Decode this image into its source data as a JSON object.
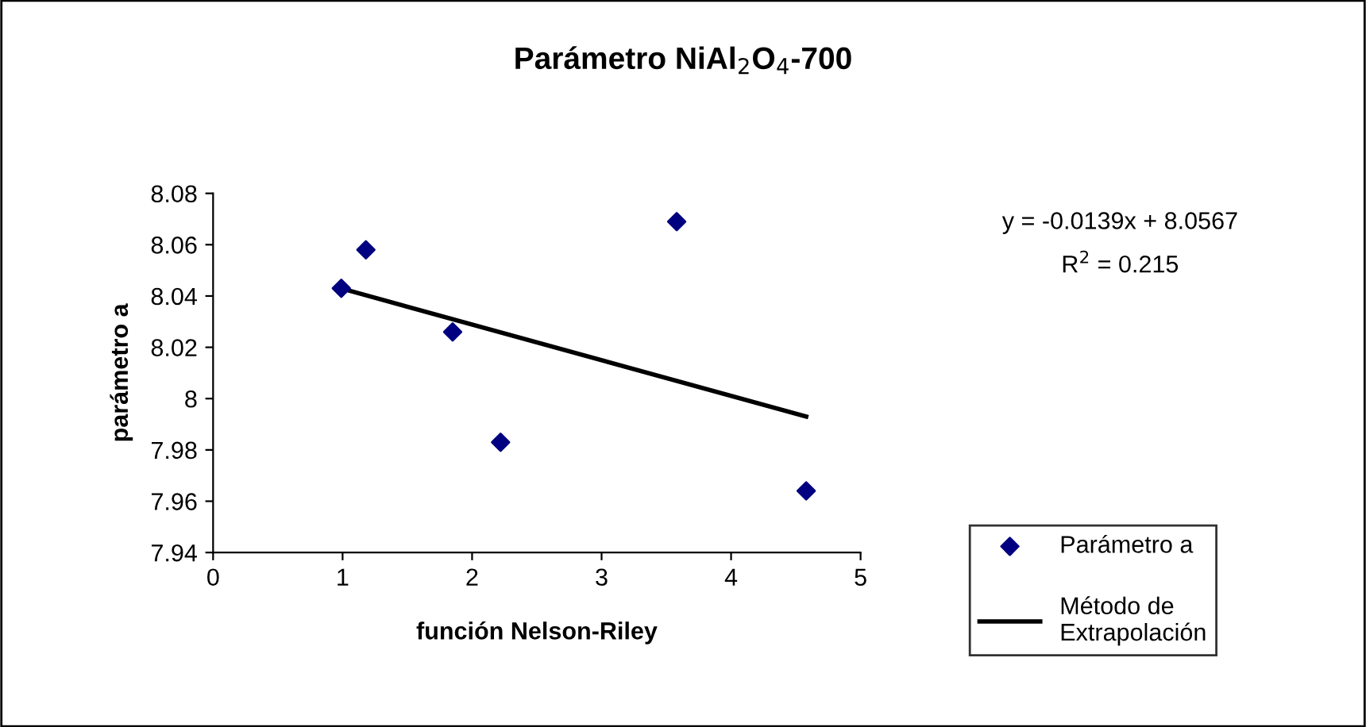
{
  "chart_data": {
    "type": "scatter",
    "title": "Parámetro NiAl$_{2}$O$_{4}$-700",
    "xlabel": "función Nelson-Riley",
    "ylabel": "parámetro a",
    "series": [
      {
        "name": "Parámetro a",
        "color": "#000080",
        "marker": "diamond",
        "x": [
          0.99,
          1.18,
          1.85,
          2.22,
          3.58,
          4.58
        ],
        "values": [
          8.043,
          8.058,
          8.026,
          7.983,
          8.069,
          7.964
        ]
      },
      {
        "name": "Método de Extrapolación",
        "type": "line",
        "color": "#000000",
        "marker": "none",
        "line_style": "solid",
        "x": [
          1.0,
          4.58
        ],
        "values": [
          8.0428,
          7.993
        ]
      }
    ],
    "annotations": [
      "y = -0.0139x + 8.0567",
      "R$^{2}$ = 0.215"
    ],
    "xlim": [
      0,
      5
    ],
    "xticks": [
      0,
      1,
      2,
      3,
      4,
      5
    ],
    "ylim": [
      7.94,
      8.08
    ],
    "yticks": [
      7.94,
      7.96,
      7.98,
      8,
      8.02,
      8.04,
      8.06,
      8.08
    ],
    "grid": false,
    "legend": "right"
  }
}
